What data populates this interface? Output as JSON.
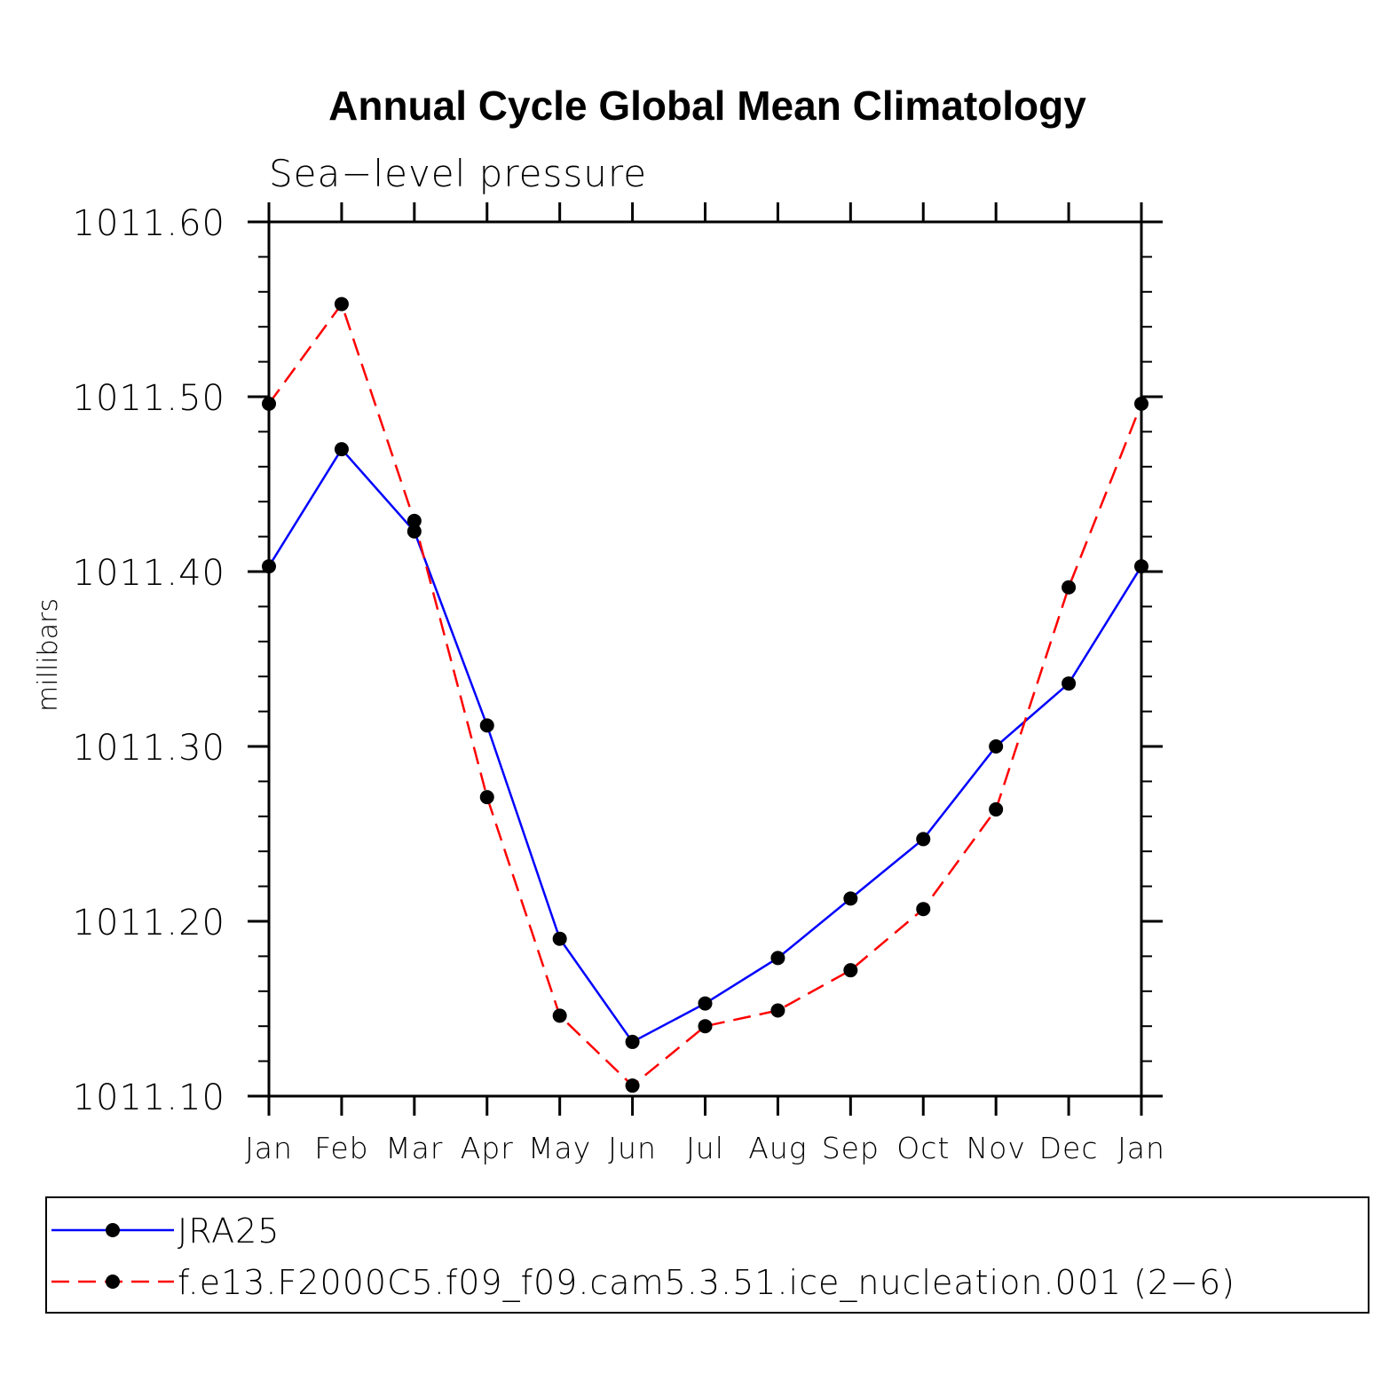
{
  "chart_data": {
    "type": "line",
    "title": "Annual Cycle Global Mean Climatology",
    "subtitle": "Sea−level pressure",
    "xlabel": "",
    "ylabel": "millibars",
    "categories": [
      "Jan",
      "Feb",
      "Mar",
      "Apr",
      "May",
      "Jun",
      "Jul",
      "Aug",
      "Sep",
      "Oct",
      "Nov",
      "Dec",
      "Jan"
    ],
    "ylim": [
      1011.1,
      1011.6
    ],
    "yticks": [
      "1011.10",
      "1011.20",
      "1011.30",
      "1011.40",
      "1011.50",
      "1011.60"
    ],
    "ytick_values": [
      1011.1,
      1011.2,
      1011.3,
      1011.4,
      1011.5,
      1011.6
    ],
    "grid": false,
    "legend_position": "bottom",
    "series": [
      {
        "name": "JRA25",
        "color": "#0000ff",
        "style": "solid",
        "values": [
          1011.403,
          1011.47,
          1011.423,
          1011.312,
          1011.19,
          1011.131,
          1011.153,
          1011.179,
          1011.213,
          1011.247,
          1011.3,
          1011.336,
          1011.403
        ]
      },
      {
        "name": "f.e13.F2000C5.f09_f09.cam5.3.51.ice_nucleation.001 (2−6)",
        "color": "#ff0000",
        "style": "dashed",
        "values": [
          1011.496,
          1011.553,
          1011.429,
          1011.271,
          1011.146,
          1011.106,
          1011.14,
          1011.149,
          1011.172,
          1011.207,
          1011.264,
          1011.391,
          1011.496
        ]
      }
    ]
  }
}
